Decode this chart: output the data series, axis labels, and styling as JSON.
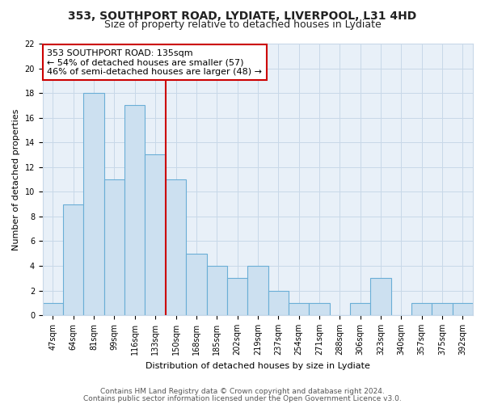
{
  "title_line1": "353, SOUTHPORT ROAD, LYDIATE, LIVERPOOL, L31 4HD",
  "title_line2": "Size of property relative to detached houses in Lydiate",
  "xlabel": "Distribution of detached houses by size in Lydiate",
  "ylabel": "Number of detached properties",
  "bar_labels": [
    "47sqm",
    "64sqm",
    "81sqm",
    "99sqm",
    "116sqm",
    "133sqm",
    "150sqm",
    "168sqm",
    "185sqm",
    "202sqm",
    "219sqm",
    "237sqm",
    "254sqm",
    "271sqm",
    "288sqm",
    "306sqm",
    "323sqm",
    "340sqm",
    "357sqm",
    "375sqm",
    "392sqm"
  ],
  "bar_values": [
    1,
    9,
    18,
    11,
    17,
    13,
    11,
    5,
    4,
    3,
    4,
    2,
    1,
    1,
    0,
    1,
    3,
    0,
    1,
    1,
    1
  ],
  "bar_fill_color": "#cce0f0",
  "bar_edge_color": "#6aaed6",
  "vline_color": "#cc0000",
  "annotation_title": "353 SOUTHPORT ROAD: 135sqm",
  "annotation_line2": "← 54% of detached houses are smaller (57)",
  "annotation_line3": "46% of semi-detached houses are larger (48) →",
  "annotation_box_color": "white",
  "annotation_box_edge_color": "#cc0000",
  "ylim": [
    0,
    22
  ],
  "yticks": [
    0,
    2,
    4,
    6,
    8,
    10,
    12,
    14,
    16,
    18,
    20,
    22
  ],
  "grid_color": "#c8d8e8",
  "plot_bg_color": "#e8f0f8",
  "fig_bg_color": "#ffffff",
  "title_fontsize": 10,
  "subtitle_fontsize": 9,
  "axis_label_fontsize": 8,
  "tick_fontsize": 7,
  "annotation_fontsize": 8,
  "footnote_fontsize": 6.5,
  "footnote_line1": "Contains HM Land Registry data © Crown copyright and database right 2024.",
  "footnote_line2": "Contains public sector information licensed under the Open Government Licence v3.0."
}
